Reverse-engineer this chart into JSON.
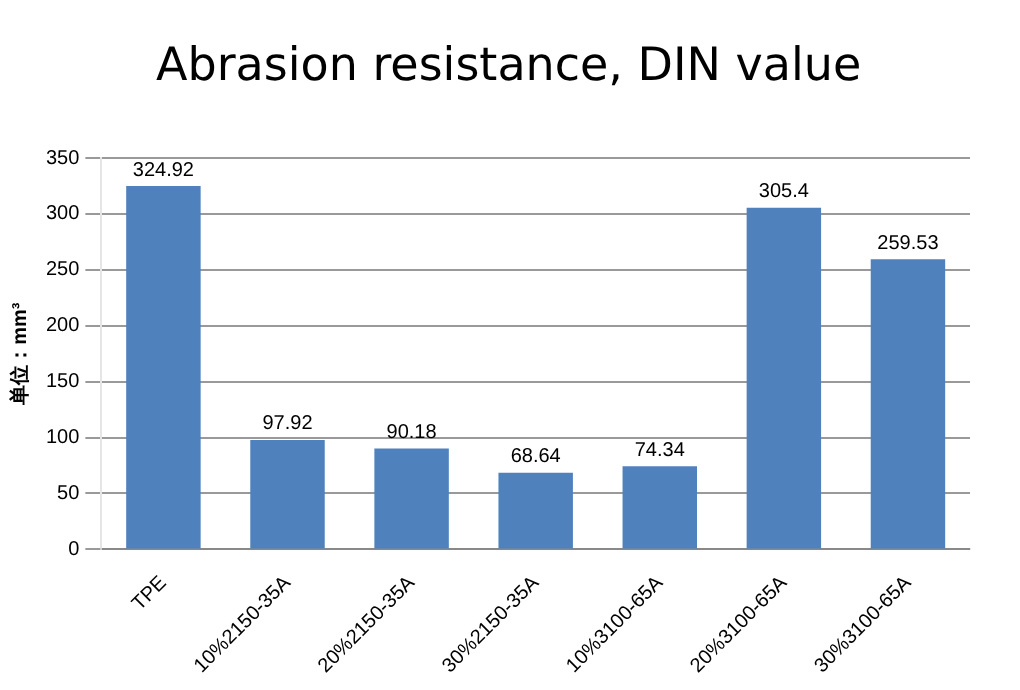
{
  "chart_data": {
    "type": "bar",
    "title": "Abrasion resistance, DIN value",
    "ylabel": "单位：mm³",
    "categories": [
      "TPE",
      "10%2150-35A",
      "20%2150-35A",
      "30%2150-35A",
      "10%3100-65A",
      "20%3100-65A",
      "30%3100-65A"
    ],
    "values": [
      324.92,
      97.92,
      90.18,
      68.64,
      74.34,
      305.4,
      259.53
    ],
    "color": "#4f81bd",
    "ylim": [
      0,
      350
    ],
    "yticks": [
      0,
      50,
      100,
      150,
      200,
      250,
      300,
      350
    ],
    "grid": "y",
    "data_labels": true
  }
}
